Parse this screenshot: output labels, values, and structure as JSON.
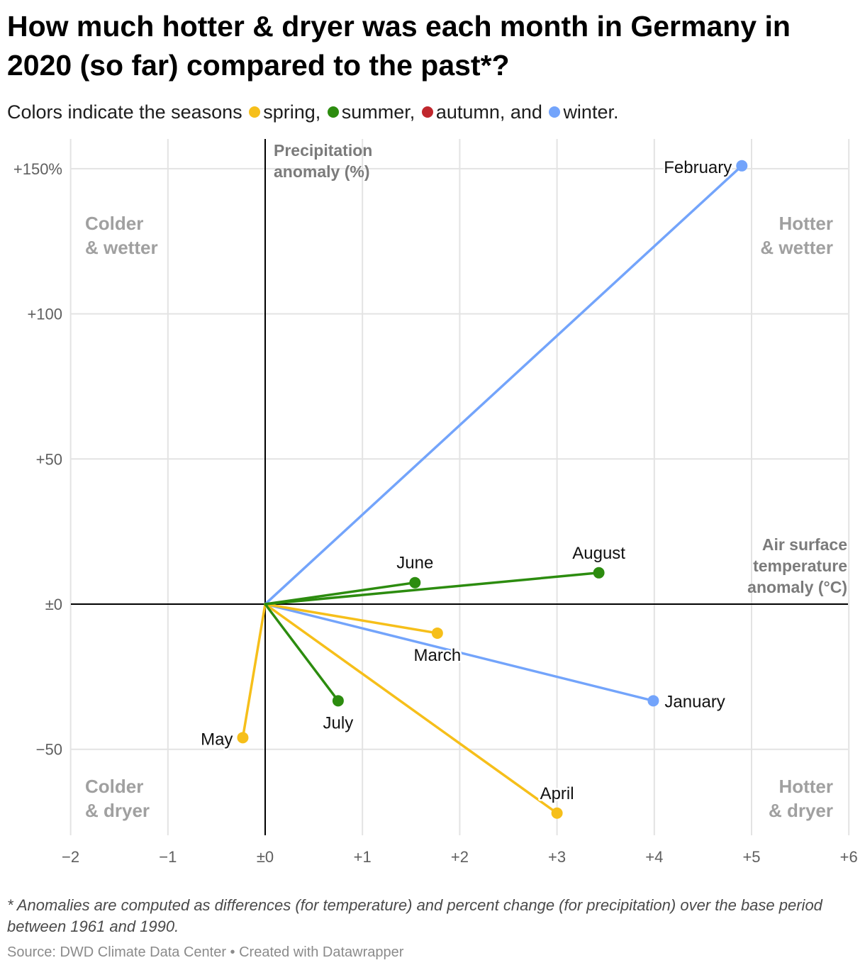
{
  "title": "How much hotter & dryer was each month in Germany in 2020 (so far) compared to the past*?",
  "subtitle": {
    "prefix": "Colors indicate the seasons",
    "seasons": [
      {
        "label": "spring,",
        "color": "#f6bf1a"
      },
      {
        "label": "summer,",
        "color": "#2c8c0f"
      },
      {
        "label": "autumn, and",
        "color": "#c0272d"
      },
      {
        "label": "winter.",
        "color": "#73a4fb"
      }
    ]
  },
  "chart_data": {
    "type": "scatter",
    "xlabel": "Air surface temperature anomaly (°C)",
    "ylabel": "Precipitation anomaly (%)",
    "xlim": [
      -2,
      6
    ],
    "ylim": [
      -80,
      160
    ],
    "x_ticks": [
      {
        "value": -2,
        "label": "−2"
      },
      {
        "value": -1,
        "label": "−1"
      },
      {
        "value": 0,
        "label": "±0"
      },
      {
        "value": 1,
        "label": "+1"
      },
      {
        "value": 2,
        "label": "+2"
      },
      {
        "value": 3,
        "label": "+3"
      },
      {
        "value": 4,
        "label": "+4"
      },
      {
        "value": 5,
        "label": "+5"
      },
      {
        "value": 6,
        "label": "+6"
      }
    ],
    "y_ticks": [
      {
        "value": 150,
        "label": "+150%"
      },
      {
        "value": 100,
        "label": "+100"
      },
      {
        "value": 50,
        "label": "+50"
      },
      {
        "value": 0,
        "label": "±0"
      },
      {
        "value": -50,
        "label": "−50"
      }
    ],
    "quadrants": [
      {
        "label": [
          "Colder",
          "& wetter"
        ],
        "position": "top-left"
      },
      {
        "label": [
          "Hotter",
          "& wetter"
        ],
        "position": "top-right"
      },
      {
        "label": [
          "Colder",
          "& dryer"
        ],
        "position": "bottom-left"
      },
      {
        "label": [
          "Hotter",
          "& dryer"
        ],
        "position": "bottom-right"
      }
    ],
    "series": [
      {
        "name": "January",
        "season": "winter",
        "color": "#73a4fb",
        "x": 3.99,
        "y": -33.3,
        "label_pos": "right"
      },
      {
        "name": "February",
        "season": "winter",
        "color": "#73a4fb",
        "x": 4.9,
        "y": 151,
        "label_pos": "left"
      },
      {
        "name": "March",
        "season": "spring",
        "color": "#f6bf1a",
        "x": 1.77,
        "y": -10,
        "label_pos": "below"
      },
      {
        "name": "April",
        "season": "spring",
        "color": "#f6bf1a",
        "x": 3.0,
        "y": -72,
        "label_pos": "above"
      },
      {
        "name": "May",
        "season": "spring",
        "color": "#f6bf1a",
        "x": -0.23,
        "y": -46,
        "label_pos": "left"
      },
      {
        "name": "June",
        "season": "summer",
        "color": "#2c8c0f",
        "x": 1.54,
        "y": 7.4,
        "label_pos": "above"
      },
      {
        "name": "July",
        "season": "summer",
        "color": "#2c8c0f",
        "x": 0.75,
        "y": -33.3,
        "label_pos": "below"
      },
      {
        "name": "August",
        "season": "summer",
        "color": "#2c8c0f",
        "x": 3.43,
        "y": 10.8,
        "label_pos": "above"
      }
    ]
  },
  "footnote": "* Anomalies are computed as differences (for temperature) and percent change (for precipitation) over the base period between 1961 and 1990.",
  "source": "Source: DWD Climate Data Center • Created with Datawrapper"
}
